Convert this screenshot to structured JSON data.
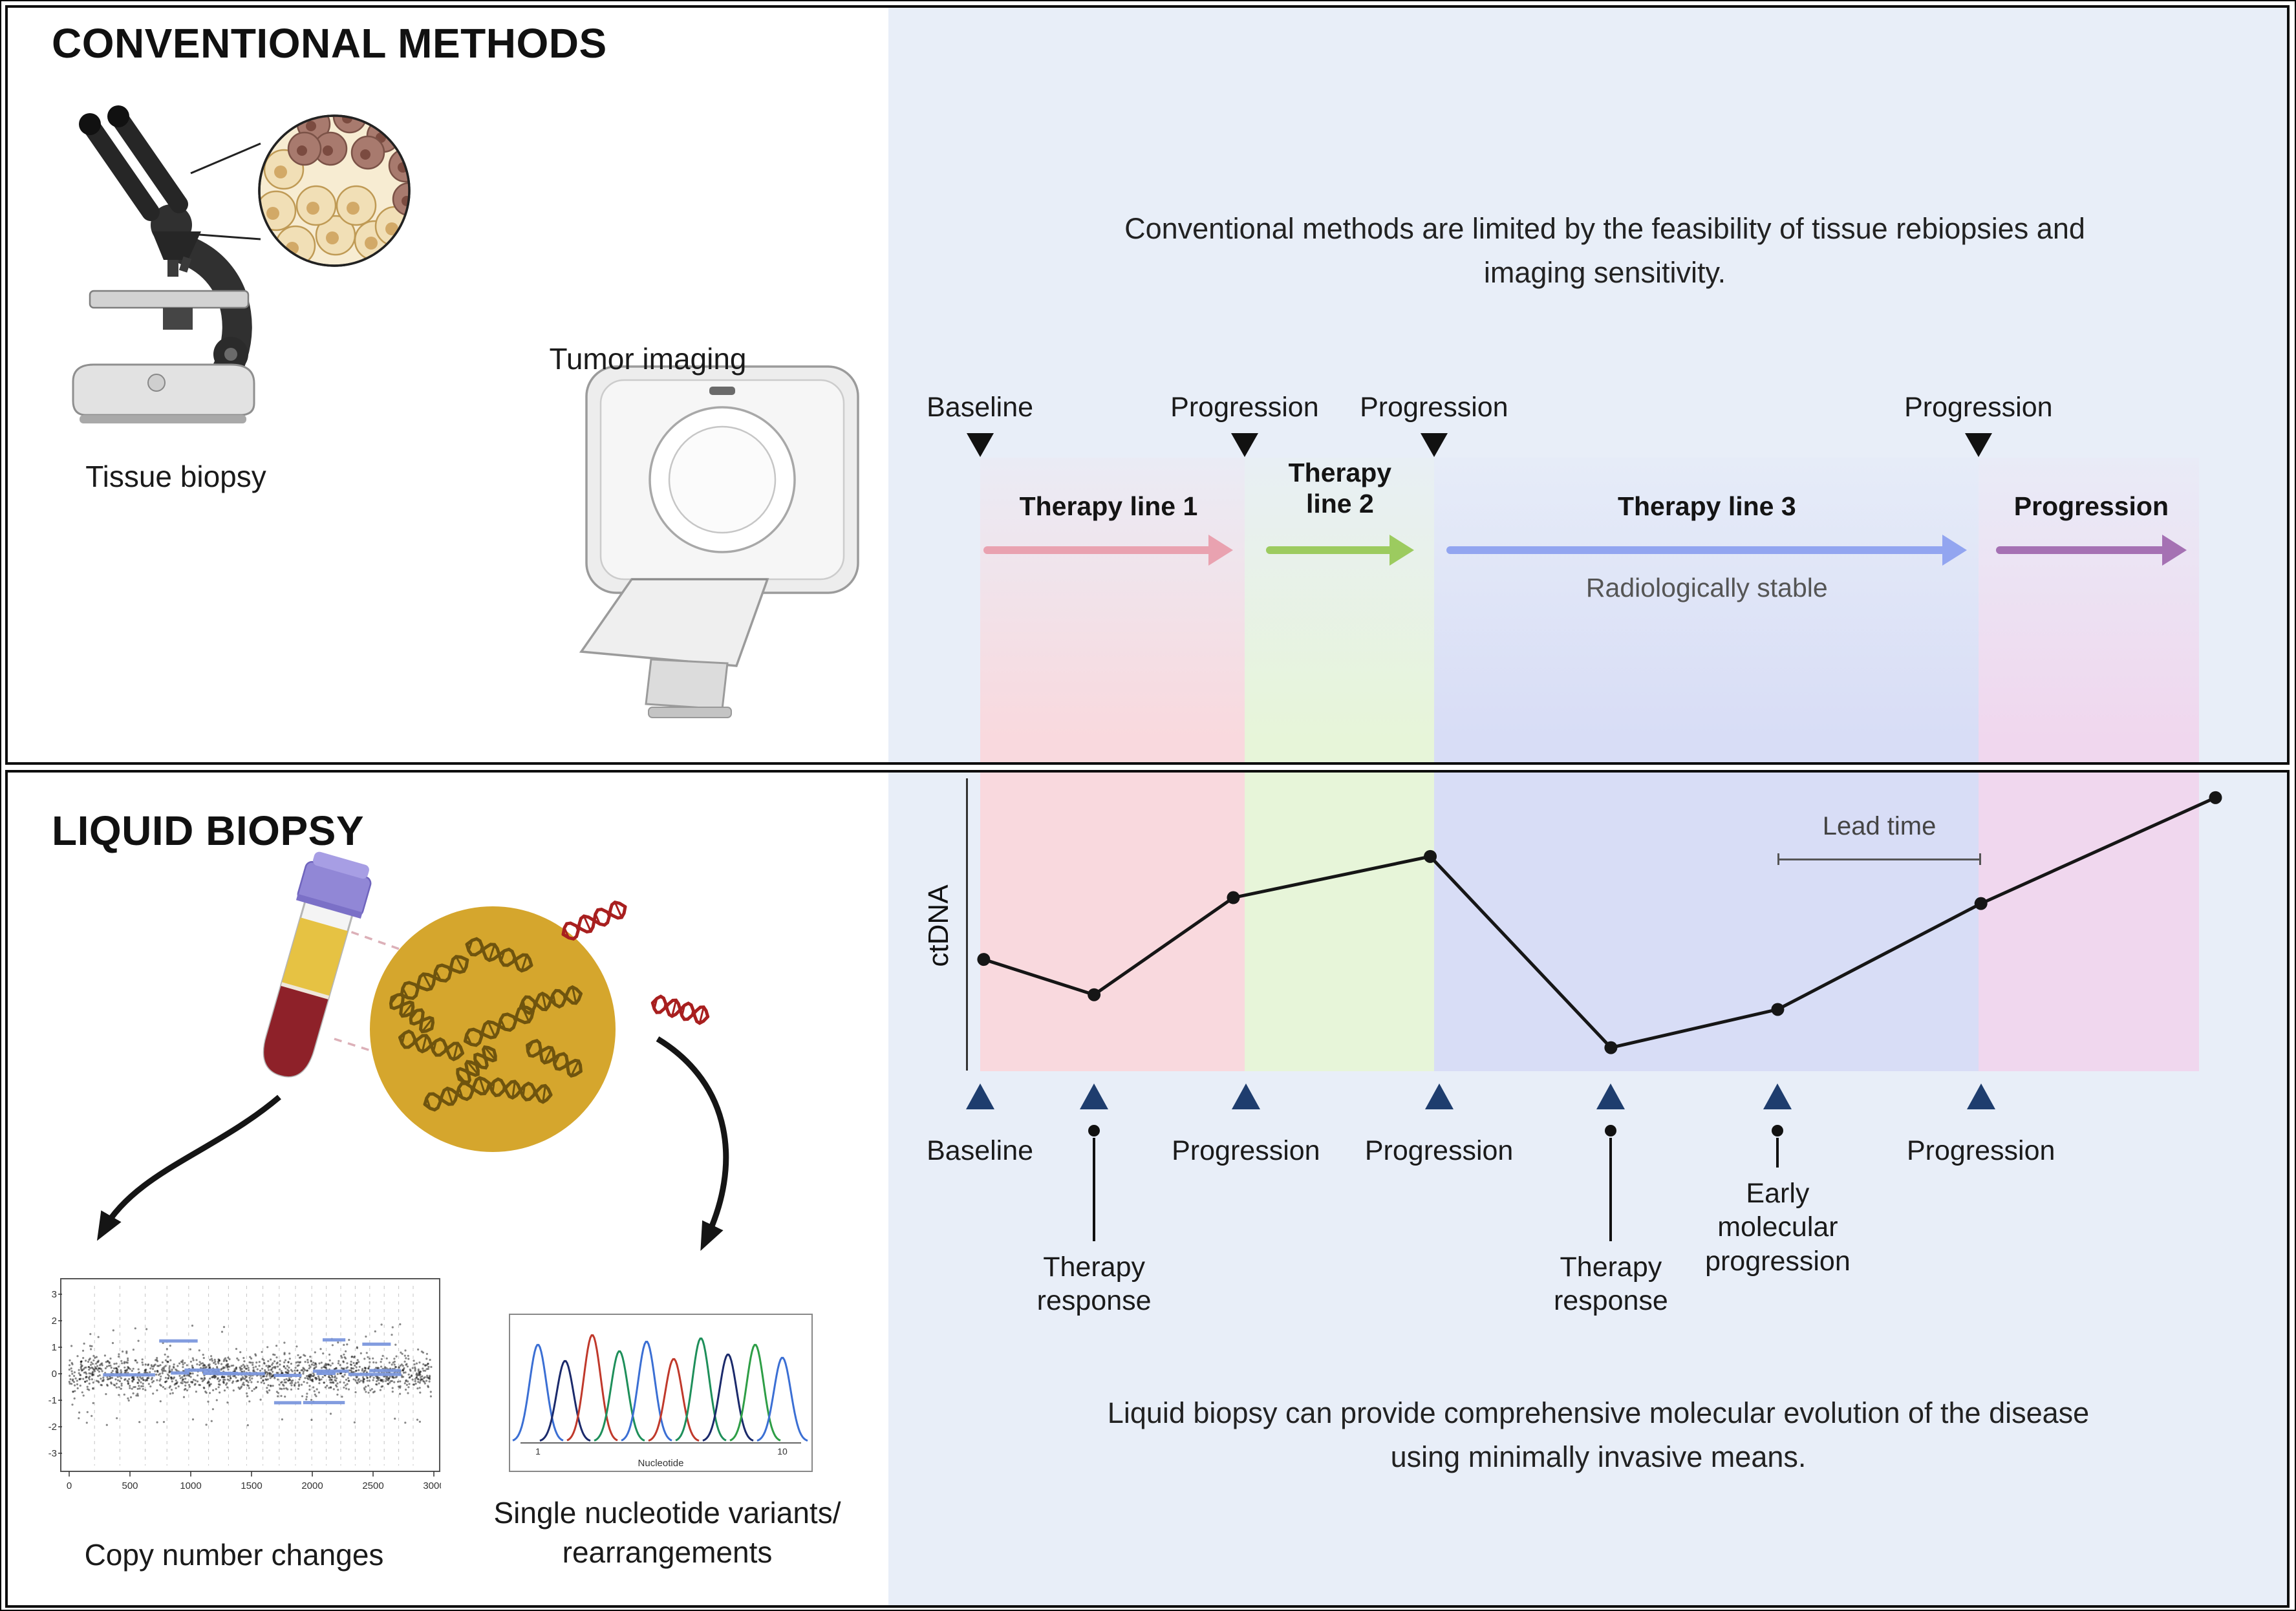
{
  "colors": {
    "panel_bg": "#e8eef8",
    "band_pink": "#f9d9de",
    "band_green": "#e7f5d9",
    "band_blue": "#d8ddf6",
    "band_purple": "#f0d7ee",
    "arrow_pink": "#e9a2b0",
    "arrow_green": "#9ccb5f",
    "arrow_blue": "#92a5f0",
    "arrow_purple": "#a571b3",
    "marker_navy": "#1e3d6e",
    "ink": "#161616"
  },
  "conventional": {
    "title": "CONVENTIONAL METHODS",
    "tissue_biopsy": "Tissue biopsy",
    "tumor_imaging": "Tumor imaging",
    "description_line1": "Conventional methods are limited by the feasibility of tissue rebiopsies and",
    "description_line2": "imaging sensitivity.",
    "timeline_markers": [
      {
        "x": 0.007,
        "label": "Baseline"
      },
      {
        "x": 0.218,
        "label": "Progression"
      },
      {
        "x": 0.369,
        "label": "Progression"
      },
      {
        "x": 0.803,
        "label": "Progression"
      }
    ],
    "arrows": [
      {
        "label": "Therapy line 1",
        "from": 0.01,
        "to": 0.209,
        "color_key": "arrow_pink",
        "wrap": false
      },
      {
        "label": "Therapy line 2",
        "from": 0.235,
        "to": 0.353,
        "color_key": "arrow_green",
        "wrap": true
      },
      {
        "label": "Therapy line 3",
        "from": 0.379,
        "to": 0.794,
        "color_key": "arrow_blue",
        "wrap": false,
        "note": "Radiologically stable"
      },
      {
        "label": "Progression",
        "from": 0.817,
        "to": 0.969,
        "color_key": "arrow_purple",
        "wrap": false
      }
    ]
  },
  "liquid": {
    "title": "LIQUID BIOPSY",
    "copy_number_caption": "Copy number changes",
    "snv_caption_line1": "Single nucleotide variants/",
    "snv_caption_line2": "rearrangements",
    "description_line1": "Liquid biopsy can provide comprehensive molecular evolution of the disease",
    "description_line2": "using minimally invasive means.",
    "copy_number_axes": {
      "x_ticks": [
        "0",
        "500",
        "1000",
        "1500",
        "2000",
        "2500",
        "3000"
      ],
      "y_ticks": [
        "3",
        "2",
        "1",
        "0",
        "-1",
        "-2",
        "-3"
      ]
    },
    "chromatogram_axes": {
      "x_label": "Nucleotide",
      "x_ticks": [
        "1",
        "10"
      ]
    }
  },
  "chart_data": {
    "type": "line",
    "title": "",
    "ylabel": "ctDNA",
    "lead_time_label": "Lead time",
    "x_axis": "treatment timeline (relative position 0-1)",
    "y_axis": "relative ctDNA level (0-1, schematic)",
    "grid": false,
    "legend": false,
    "points": [
      {
        "x": 0.01,
        "y": 0.38,
        "event": "Baseline"
      },
      {
        "x": 0.098,
        "y": 0.26,
        "event": "Therapy response"
      },
      {
        "x": 0.209,
        "y": 0.59,
        "event": "Progression"
      },
      {
        "x": 0.366,
        "y": 0.73,
        "event": "Progression"
      },
      {
        "x": 0.51,
        "y": 0.08,
        "event": "Therapy response"
      },
      {
        "x": 0.643,
        "y": 0.21,
        "event": "Early molecular progression"
      },
      {
        "x": 0.805,
        "y": 0.57,
        "event": "Progression"
      },
      {
        "x": 0.992,
        "y": 0.93,
        "event": ""
      }
    ],
    "markers_below": [
      {
        "x": 0.007,
        "label": "Baseline",
        "stem": false
      },
      {
        "x": 0.098,
        "label": "Therapy response",
        "stem": true,
        "stem_len": 160
      },
      {
        "x": 0.219,
        "label": "Progression",
        "stem": false
      },
      {
        "x": 0.373,
        "label": "Progression",
        "stem": false
      },
      {
        "x": 0.51,
        "label": "Therapy response",
        "stem": true,
        "stem_len": 160
      },
      {
        "x": 0.643,
        "label": "Early molecular progression",
        "stem": true,
        "stem_len": 46
      },
      {
        "x": 0.805,
        "label": "Progression",
        "stem": false
      }
    ],
    "bands": [
      {
        "from": 0.007,
        "to": 0.218,
        "color_key": "band_pink"
      },
      {
        "from": 0.218,
        "to": 0.369,
        "color_key": "band_green"
      },
      {
        "from": 0.369,
        "to": 0.803,
        "color_key": "band_blue"
      },
      {
        "from": 0.803,
        "to": 0.979,
        "color_key": "band_purple"
      }
    ],
    "lead_time_span": {
      "from": 0.643,
      "to": 0.805
    }
  }
}
